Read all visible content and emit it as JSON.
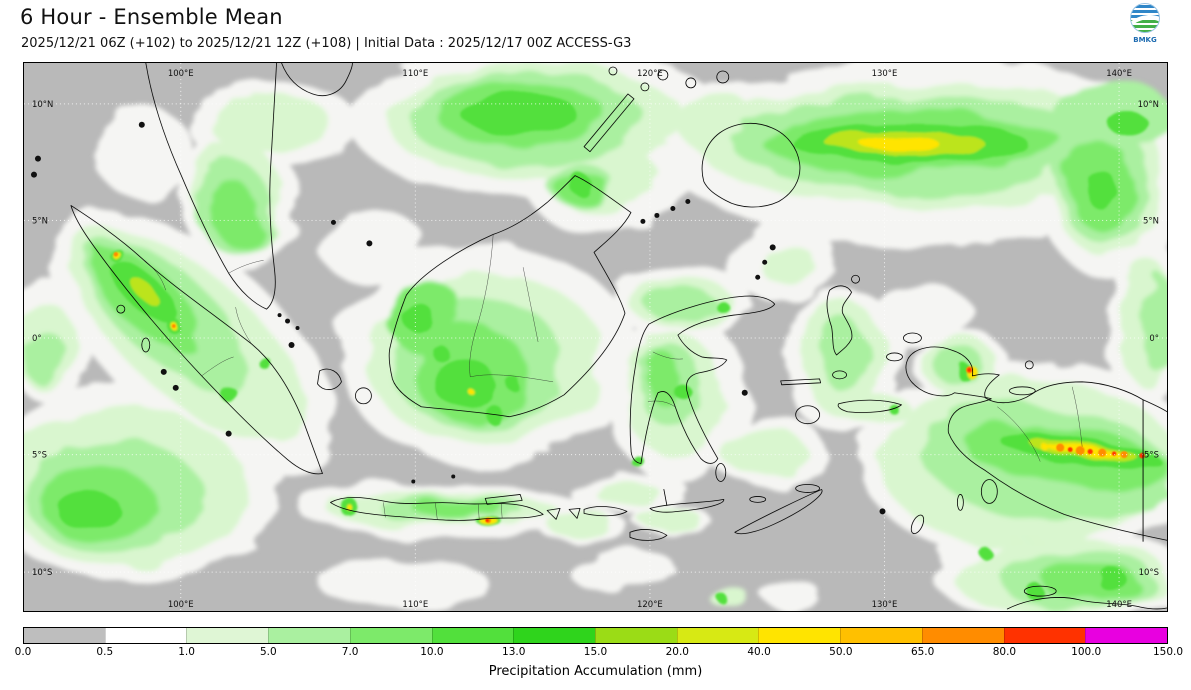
{
  "header": {
    "title": "6 Hour - Ensemble Mean",
    "subtitle": "2025/12/21 06Z (+102) to 2025/12/21 12Z (+108) | Initial Data : 2025/12/17 00Z ACCESS-G3",
    "logo_label": "BMKG"
  },
  "map": {
    "background": "#b9b9b9",
    "lon_ticks": [
      "100°E",
      "110°E",
      "120°E",
      "130°E",
      "140°E"
    ],
    "lat_ticks": [
      "10°N",
      "5°N",
      "0°",
      "5°S",
      "10°S"
    ]
  },
  "colorbar": {
    "label": "Precipitation Accumulation (mm)",
    "tick_labels": [
      "0.0",
      "0.5",
      "1.0",
      "5.0",
      "7.0",
      "10.0",
      "13.0",
      "15.0",
      "20.0",
      "40.0",
      "50.0",
      "65.0",
      "80.0",
      "100.0",
      "150.0"
    ],
    "segment_colors": [
      "#bebebe",
      "#ffffff",
      "#dff6d5",
      "#aaf0a0",
      "#7dea6a",
      "#52e03c",
      "#2fd41c",
      "#9bdc16",
      "#d7e914",
      "#ffe400",
      "#ffc000",
      "#ff8c00",
      "#ff3200",
      "#e800e0"
    ]
  }
}
